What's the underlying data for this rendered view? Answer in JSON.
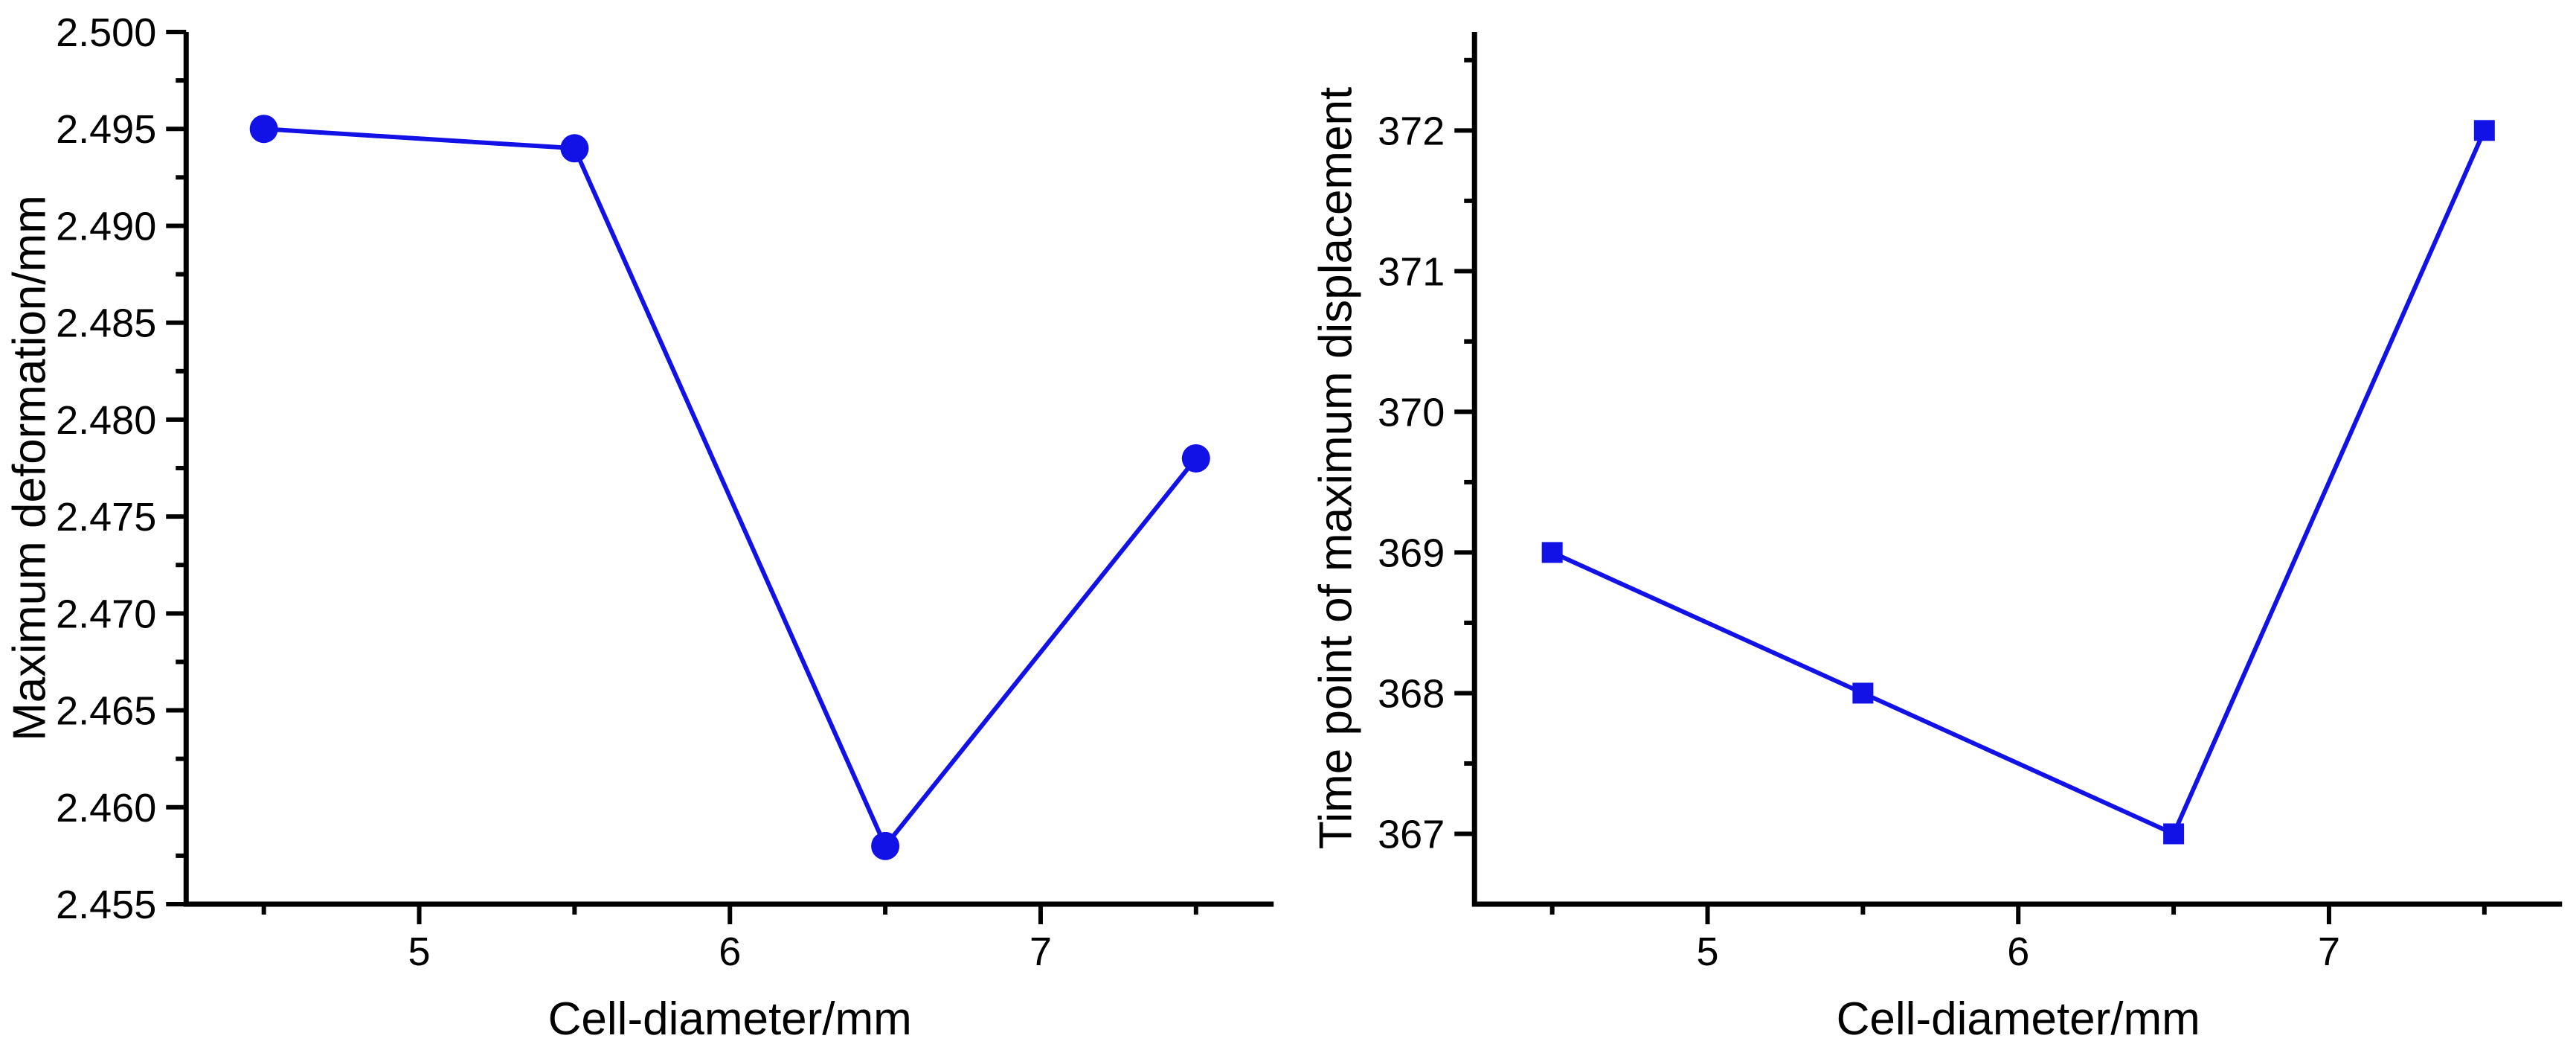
{
  "page": {
    "background": "#ffffff",
    "text_color": "#000000"
  },
  "chart_data": [
    {
      "type": "line",
      "title": "",
      "xlabel": "Cell-diameter/mm",
      "ylabel": "Maximum deformation/mm",
      "axis_color": "#000000",
      "grid": false,
      "legend": false,
      "xlim": [
        4.25,
        7.75
      ],
      "ylim": [
        2.455,
        2.5
      ],
      "xticks": [
        "5",
        "6",
        "7"
      ],
      "xticks_minor": [
        4.5,
        5.5,
        6.5,
        7.5
      ],
      "yticks": [
        "2.500",
        "2.495",
        "2.490",
        "2.485",
        "2.480",
        "2.475",
        "2.470",
        "2.465",
        "2.460",
        "2.455"
      ],
      "yticks_minor": [
        2.4575,
        2.4625,
        2.4675,
        2.4725,
        2.4775,
        2.4825,
        2.4875,
        2.4925,
        2.4975
      ],
      "series": [
        {
          "name": "Maximum deformation",
          "marker": "circle",
          "color": "#1212e6",
          "x": [
            4.5,
            5.5,
            6.5,
            7.5
          ],
          "y": [
            2.495,
            2.494,
            2.458,
            2.478
          ]
        }
      ]
    },
    {
      "type": "line",
      "title": "",
      "xlabel": "Cell-diameter/mm",
      "ylabel": "Time point of maximum displacement",
      "axis_color": "#000000",
      "grid": false,
      "legend": false,
      "xlim": [
        4.25,
        7.75
      ],
      "ylim": [
        366.5,
        372.7
      ],
      "xticks": [
        "5",
        "6",
        "7"
      ],
      "xticks_minor": [
        4.5,
        5.5,
        6.5,
        7.5
      ],
      "yticks": [
        "372",
        "371",
        "370",
        "369",
        "368",
        "367"
      ],
      "yticks_minor": [
        367.5,
        368.5,
        369.5,
        370.5,
        371.5,
        372.5
      ],
      "series": [
        {
          "name": "Time point of maximum displacement",
          "marker": "square",
          "color": "#1212e6",
          "x": [
            4.5,
            5.5,
            6.5,
            7.5
          ],
          "y": [
            369,
            368,
            367,
            372
          ]
        }
      ]
    }
  ]
}
